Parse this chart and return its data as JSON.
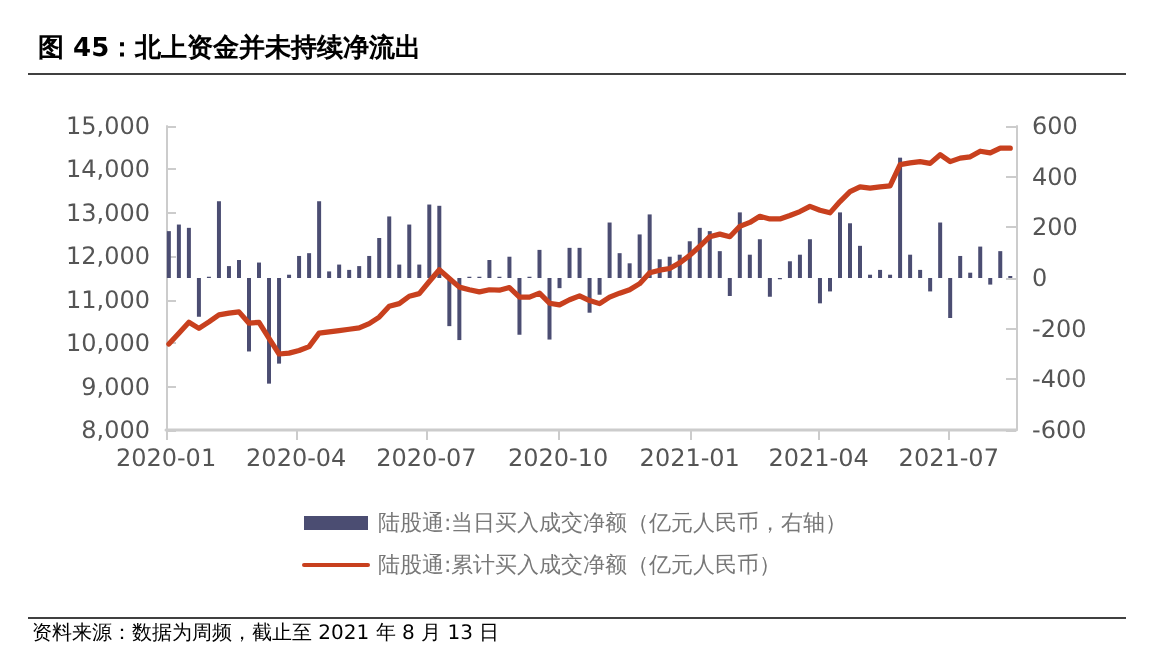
{
  "chart_data": {
    "type": "bar",
    "title": "图 45：北上资金并未持续净流出",
    "annotations": [
      "资料来源：数据为周频，截止至 2021 年 8 月 13 日"
    ],
    "x": [
      "2020-01-03",
      "2020-01-10",
      "2020-01-17",
      "2020-01-24",
      "2020-01-31",
      "2020-02-07",
      "2020-02-14",
      "2020-02-21",
      "2020-02-28",
      "2020-03-06",
      "2020-03-13",
      "2020-03-20",
      "2020-03-27",
      "2020-04-03",
      "2020-04-10",
      "2020-04-17",
      "2020-04-24",
      "2020-05-01",
      "2020-05-08",
      "2020-05-15",
      "2020-05-22",
      "2020-05-29",
      "2020-06-05",
      "2020-06-12",
      "2020-06-19",
      "2020-06-26",
      "2020-07-03",
      "2020-07-10",
      "2020-07-17",
      "2020-07-24",
      "2020-07-31",
      "2020-08-07",
      "2020-08-14",
      "2020-08-21",
      "2020-08-28",
      "2020-09-04",
      "2020-09-11",
      "2020-09-18",
      "2020-09-25",
      "2020-10-02",
      "2020-10-09",
      "2020-10-16",
      "2020-10-23",
      "2020-10-30",
      "2020-11-06",
      "2020-11-13",
      "2020-11-20",
      "2020-11-27",
      "2020-12-04",
      "2020-12-11",
      "2020-12-18",
      "2020-12-25",
      "2021-01-01",
      "2021-01-08",
      "2021-01-15",
      "2021-01-22",
      "2021-01-29",
      "2021-02-05",
      "2021-02-12",
      "2021-02-19",
      "2021-02-26",
      "2021-03-05",
      "2021-03-12",
      "2021-03-19",
      "2021-03-26",
      "2021-04-02",
      "2021-04-09",
      "2021-04-16",
      "2021-04-23",
      "2021-04-30",
      "2021-05-07",
      "2021-05-14",
      "2021-05-21",
      "2021-05-28",
      "2021-06-04",
      "2021-06-11",
      "2021-06-18",
      "2021-06-25",
      "2021-07-02",
      "2021-07-09",
      "2021-07-16",
      "2021-07-23",
      "2021-07-30",
      "2021-08-06",
      "2021-08-13"
    ],
    "series": [
      {
        "name": "陆股通:当日买入成交净额（亿元人民币，右轴）",
        "axis": "y2",
        "color": "#4b4d72",
        "values": [
          185,
          211,
          198,
          -153,
          5,
          303,
          47,
          71,
          -290,
          61,
          -417,
          -338,
          13,
          87,
          98,
          303,
          26,
          53,
          32,
          47,
          87,
          158,
          243,
          53,
          211,
          53,
          290,
          285,
          -190,
          -245,
          5,
          5,
          71,
          5,
          84,
          -224,
          5,
          111,
          -243,
          -40,
          119,
          119,
          -137,
          -66,
          219,
          98,
          58,
          172,
          251,
          74,
          84,
          92,
          145,
          198,
          185,
          106,
          -71,
          259,
          92,
          153,
          -74,
          -5,
          66,
          92,
          153,
          -100,
          -53,
          259,
          216,
          127,
          13,
          32,
          13,
          475,
          92,
          32,
          -53,
          219,
          -158,
          87,
          21,
          124,
          -26,
          106,
          8
        ]
      },
      {
        "name": "陆股通:累计买入成交净额（亿元人民币）",
        "type": "line",
        "color": "#c8401e",
        "values": [
          9980,
          10230,
          10480,
          10340,
          10490,
          10650,
          10690,
          10720,
          10460,
          10480,
          10110,
          9750,
          9770,
          9830,
          9920,
          10230,
          10260,
          10290,
          10320,
          10350,
          10450,
          10600,
          10850,
          10910,
          11080,
          11140,
          11420,
          11690,
          11490,
          11290,
          11230,
          11180,
          11230,
          11220,
          11280,
          11060,
          11060,
          11150,
          10920,
          10880,
          11000,
          11090,
          10980,
          10910,
          11060,
          11150,
          11230,
          11370,
          11620,
          11680,
          11720,
          11850,
          12020,
          12230,
          12450,
          12510,
          12450,
          12690,
          12780,
          12920,
          12860,
          12860,
          12940,
          13030,
          13150,
          13060,
          13000,
          13260,
          13490,
          13600,
          13570,
          13600,
          13620,
          14110,
          14150,
          14180,
          14140,
          14340,
          14180,
          14260,
          14290,
          14420,
          14380,
          14490,
          14490
        ]
      }
    ],
    "xlim": [
      "2020-01-01",
      "2021-08-17"
    ],
    "xticks": [
      "2020-01",
      "2020-04",
      "2020-07",
      "2020-10",
      "2021-01",
      "2021-04",
      "2021-07"
    ],
    "ylim": [
      8000,
      15000
    ],
    "yticks": [
      {
        "value": 8000,
        "label": "8,000"
      },
      {
        "value": 9000,
        "label": "9,000"
      },
      {
        "value": 10000,
        "label": "10,000"
      },
      {
        "value": 11000,
        "label": "11,000"
      },
      {
        "value": 12000,
        "label": "12,000"
      },
      {
        "value": 13000,
        "label": "13,000"
      },
      {
        "value": 14000,
        "label": "14,000"
      },
      {
        "value": 15000,
        "label": "15,000"
      }
    ],
    "y2lim": [
      -600,
      600
    ],
    "y2ticks": [
      -600,
      -400,
      -200,
      0,
      200,
      400,
      600
    ],
    "grid": false,
    "legend": "bottom",
    "marker": "none",
    "line_style": "solid"
  }
}
